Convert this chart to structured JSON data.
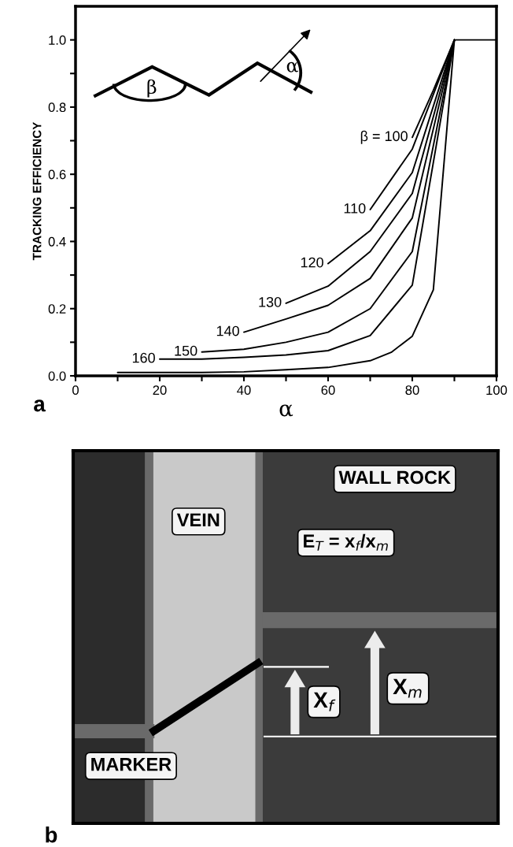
{
  "chart_data": [
    {
      "type": "line",
      "ylabel": "TRACKING EFFICIENCY",
      "xlabel": "α",
      "xlim": [
        0,
        100
      ],
      "ylim": [
        0,
        1.1
      ],
      "xticks": [
        0,
        {
          "value": 10,
          "label": null
        },
        20,
        {
          "value": 30,
          "label": null
        },
        40,
        {
          "value": 50,
          "label": null
        },
        60,
        {
          "value": 70,
          "label": null
        },
        80,
        {
          "value": 90,
          "label": null
        },
        100
      ],
      "yticks": [
        {
          "value": 0,
          "label": "0.0"
        },
        {
          "value": 0.1,
          "label": null
        },
        0.2,
        {
          "value": 0.3,
          "label": null
        },
        0.4,
        {
          "value": 0.5,
          "label": null
        },
        0.6,
        {
          "value": 0.7,
          "label": null
        },
        0.8,
        {
          "value": 0.9,
          "label": null
        },
        {
          "value": 1,
          "label": "1.0"
        }
      ],
      "grid": false,
      "annotations": [
        "β",
        "α",
        "a"
      ],
      "series": [
        {
          "name": "β = 100",
          "color": "#000000",
          "x": [
            80,
            85,
            90
          ],
          "values": [
            0.71,
            0.85,
            1.0
          ]
        },
        {
          "name": "110",
          "color": "#000000",
          "x": [
            70,
            80,
            90
          ],
          "values": [
            0.495,
            0.675,
            1.0
          ]
        },
        {
          "name": "120",
          "color": "#000000",
          "x": [
            60,
            70,
            80,
            90
          ],
          "values": [
            0.334,
            0.432,
            0.605,
            1.0
          ]
        },
        {
          "name": "130",
          "color": "#000000",
          "x": [
            50,
            60,
            70,
            80,
            90
          ],
          "values": [
            0.216,
            0.267,
            0.37,
            0.543,
            1.0
          ]
        },
        {
          "name": "140",
          "color": "#000000",
          "x": [
            40,
            50,
            60,
            70,
            80,
            90
          ],
          "values": [
            0.13,
            0.169,
            0.21,
            0.29,
            0.47,
            1.0
          ]
        },
        {
          "name": "150",
          "color": "#000000",
          "x": [
            30,
            40,
            50,
            60,
            70,
            80,
            90
          ],
          "values": [
            0.071,
            0.079,
            0.1,
            0.13,
            0.2,
            0.37,
            1.0
          ]
        },
        {
          "name": "160",
          "color": "#000000",
          "x": [
            20,
            30,
            40,
            50,
            60,
            70,
            80,
            90
          ],
          "values": [
            0.05,
            0.05,
            0.055,
            0.062,
            0.075,
            0.12,
            0.27,
            1.0
          ]
        },
        {
          "color": "#000000",
          "x": [
            10,
            20,
            30,
            40,
            50,
            60,
            70,
            75,
            80,
            85,
            90
          ],
          "values": [
            0.01,
            0.01,
            0.01,
            0.012,
            0.018,
            0.025,
            0.045,
            0.07,
            0.118,
            0.256,
            1.0
          ]
        },
        {
          "color": "#000000",
          "x": [
            90,
            100
          ],
          "values": [
            1.0,
            1.0
          ]
        }
      ]
    },
    {
      "type": "other",
      "annotations": [
        "WALL ROCK",
        "VEIN",
        "E$_{T}$ = x$_{f}$/x$_{m}$",
        "X$_{f}$",
        "X$_{m}$",
        "MARKER",
        "b"
      ]
    }
  ]
}
